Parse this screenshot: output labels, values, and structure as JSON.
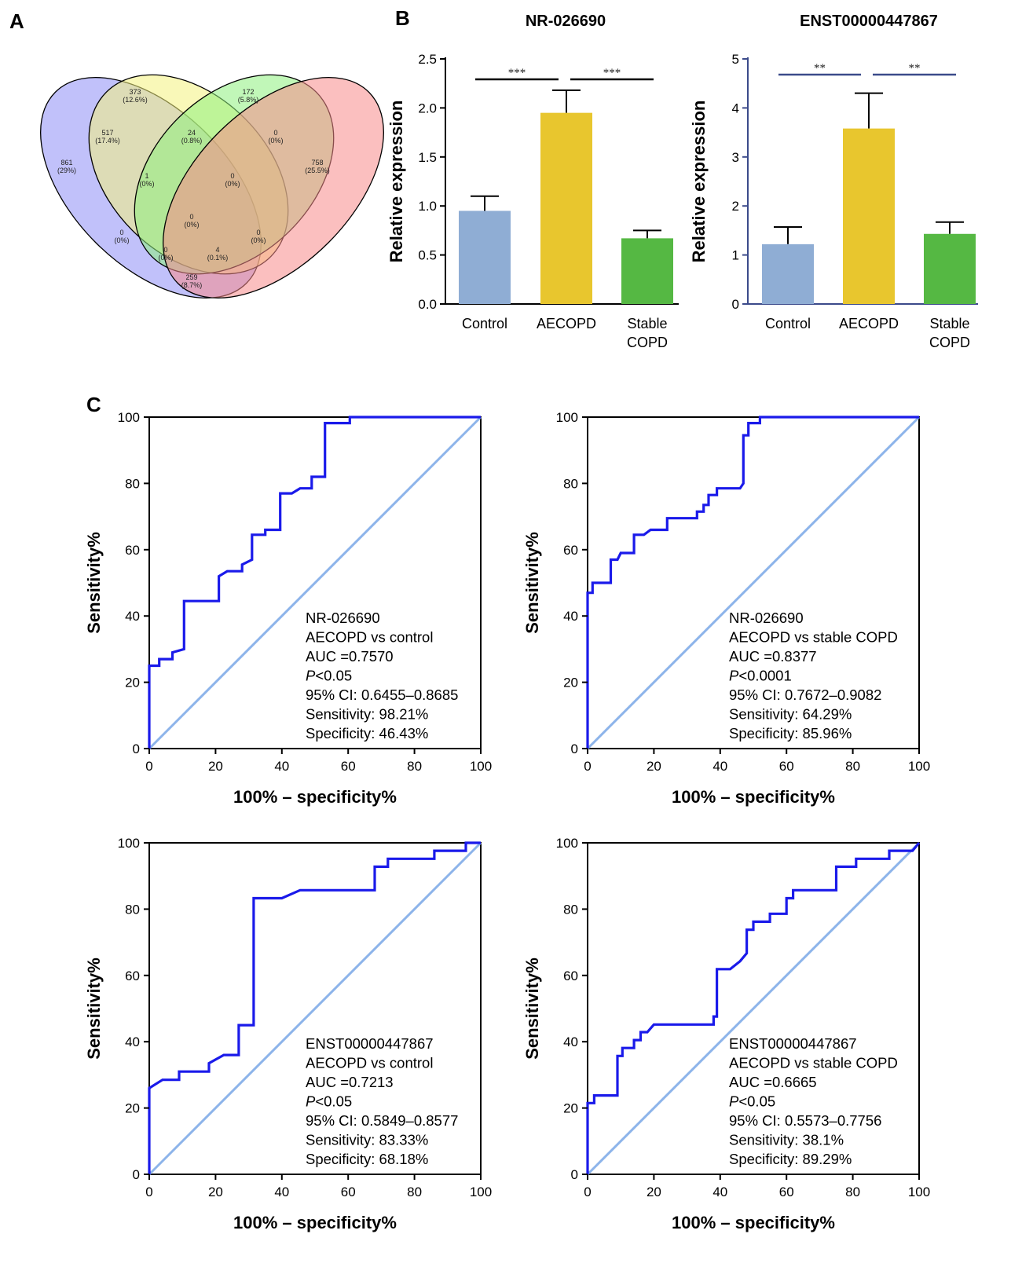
{
  "panel_letters": {
    "a": "A",
    "b": "B",
    "c": "C"
  },
  "venn": {
    "sets": [
      {
        "color": "#8e8ef6"
      },
      {
        "color": "#f4f27e"
      },
      {
        "color": "#8ef07e"
      },
      {
        "color": "#f78a8a"
      }
    ],
    "regions": [
      {
        "count": "373",
        "pct": "(12.6%)"
      },
      {
        "count": "172",
        "pct": "(5.8%)"
      },
      {
        "count": "517",
        "pct": "(17.4%)"
      },
      {
        "count": "24",
        "pct": "(0.8%)"
      },
      {
        "count": "0",
        "pct": "(0%)"
      },
      {
        "count": "861",
        "pct": "(29%)"
      },
      {
        "count": "758",
        "pct": "(25.5%)"
      },
      {
        "count": "1",
        "pct": "(0%)"
      },
      {
        "count": "0",
        "pct": "(0%)"
      },
      {
        "count": "0",
        "pct": "(0%)"
      },
      {
        "count": "0",
        "pct": "(0%)"
      },
      {
        "count": "0",
        "pct": "(0%)"
      },
      {
        "count": "0",
        "pct": "(0%)"
      },
      {
        "count": "4",
        "pct": "(0.1%)"
      },
      {
        "count": "259",
        "pct": "(8.7%)"
      }
    ]
  },
  "chart_data": [
    {
      "type": "bar",
      "title": "NR-026690",
      "ylabel": "Relative expression",
      "categories": [
        "Control",
        "AECOPD",
        "Stable COPD"
      ],
      "values": [
        0.95,
        1.95,
        0.67
      ],
      "error_upper": [
        0.15,
        0.23,
        0.08
      ],
      "colors": [
        "#8fadd4",
        "#e8c62e",
        "#55b843"
      ],
      "ylim": [
        0,
        2.5
      ],
      "yticks": [
        "0.0",
        "0.5",
        "1.0",
        "1.5",
        "2.0",
        "2.5"
      ],
      "significance": [
        {
          "from": 0,
          "to": 1,
          "label": "***"
        },
        {
          "from": 1,
          "to": 2,
          "label": "***"
        }
      ]
    },
    {
      "type": "bar",
      "title": "ENST00000447867",
      "ylabel": "Relative expression",
      "categories": [
        "Control",
        "AECOPD",
        "Stable COPD"
      ],
      "values": [
        1.22,
        3.58,
        1.43
      ],
      "error_upper": [
        0.35,
        0.72,
        0.24
      ],
      "colors": [
        "#8fadd4",
        "#e8c62e",
        "#55b843"
      ],
      "ylim": [
        0,
        5
      ],
      "yticks": [
        "0",
        "1",
        "2",
        "3",
        "4",
        "5"
      ],
      "significance": [
        {
          "from": 0,
          "to": 1,
          "label": "**"
        },
        {
          "from": 1,
          "to": 2,
          "label": "**"
        }
      ]
    },
    {
      "type": "line",
      "xlabel": "100% – specificity%",
      "ylabel": "Sensitivity%",
      "xlim": [
        0,
        100
      ],
      "ylim": [
        0,
        100
      ],
      "xticks": [
        "0",
        "20",
        "40",
        "60",
        "80",
        "100"
      ],
      "yticks": [
        "0",
        "20",
        "40",
        "60",
        "80",
        "100"
      ],
      "annotation": [
        "NR-026690",
        "AECOPD vs control",
        "AUC =0.7570",
        "P<0.05",
        "95% CI: 0.6455–0.8685",
        "Sensitivity: 98.21%",
        "Specificity: 46.43%"
      ],
      "roc": [
        [
          0,
          0
        ],
        [
          0,
          25
        ],
        [
          3,
          25
        ],
        [
          3,
          27
        ],
        [
          7,
          27
        ],
        [
          7,
          29
        ],
        [
          10.5,
          30
        ],
        [
          10.5,
          44.5
        ],
        [
          21,
          44.5
        ],
        [
          21,
          52
        ],
        [
          23.5,
          53.5
        ],
        [
          28,
          53.5
        ],
        [
          28,
          55.5
        ],
        [
          31,
          57
        ],
        [
          31,
          64.5
        ],
        [
          35,
          64.5
        ],
        [
          35,
          66
        ],
        [
          39.5,
          66
        ],
        [
          39.5,
          77
        ],
        [
          43,
          77
        ],
        [
          45.5,
          78.5
        ],
        [
          49,
          78.5
        ],
        [
          49,
          82
        ],
        [
          53,
          82
        ],
        [
          53,
          98.2
        ],
        [
          60.5,
          98.2
        ],
        [
          60.5,
          100
        ],
        [
          100,
          100
        ]
      ]
    },
    {
      "type": "line",
      "xlabel": "100% – specificity%",
      "ylabel": "Sensitivity%",
      "xlim": [
        0,
        100
      ],
      "ylim": [
        0,
        100
      ],
      "xticks": [
        "0",
        "20",
        "40",
        "60",
        "80",
        "100"
      ],
      "yticks": [
        "0",
        "20",
        "40",
        "60",
        "80",
        "100"
      ],
      "annotation": [
        "NR-026690",
        "AECOPD vs stable COPD",
        "AUC =0.8377",
        "P<0.0001",
        "95% CI: 0.7672–0.9082",
        "Sensitivity: 64.29%",
        "Specificity: 85.96%"
      ],
      "roc": [
        [
          0,
          0
        ],
        [
          0,
          47
        ],
        [
          1.5,
          47
        ],
        [
          1.5,
          50
        ],
        [
          7,
          50
        ],
        [
          7,
          57
        ],
        [
          9,
          57
        ],
        [
          10,
          59
        ],
        [
          14,
          59
        ],
        [
          14,
          64.5
        ],
        [
          17,
          64.5
        ],
        [
          19,
          66
        ],
        [
          24,
          66
        ],
        [
          24,
          69.5
        ],
        [
          33,
          69.5
        ],
        [
          33,
          71.5
        ],
        [
          35,
          71.5
        ],
        [
          35,
          73.5
        ],
        [
          36.5,
          73.5
        ],
        [
          36.5,
          76.5
        ],
        [
          39,
          76.5
        ],
        [
          39,
          78.5
        ],
        [
          46,
          78.5
        ],
        [
          47,
          80
        ],
        [
          47,
          94.5
        ],
        [
          48.5,
          94.5
        ],
        [
          48.5,
          98.2
        ],
        [
          52,
          98.2
        ],
        [
          52,
          100
        ],
        [
          100,
          100
        ]
      ]
    },
    {
      "type": "line",
      "xlabel": "100% – specificity%",
      "ylabel": "Sensitivity%",
      "xlim": [
        0,
        100
      ],
      "ylim": [
        0,
        100
      ],
      "xticks": [
        "0",
        "20",
        "40",
        "60",
        "80",
        "100"
      ],
      "yticks": [
        "0",
        "20",
        "40",
        "60",
        "80",
        "100"
      ],
      "annotation": [
        "ENST00000447867",
        "AECOPD vs control",
        "AUC =0.7213",
        "P<0.05",
        "95% CI: 0.5849–0.8577",
        "Sensitivity: 83.33%",
        "Specificity: 68.18%"
      ],
      "roc": [
        [
          0,
          0
        ],
        [
          0,
          26
        ],
        [
          4,
          28.5
        ],
        [
          9,
          28.5
        ],
        [
          9,
          31
        ],
        [
          18,
          31
        ],
        [
          18,
          33.5
        ],
        [
          22.5,
          36
        ],
        [
          27,
          36
        ],
        [
          27,
          45
        ],
        [
          31.5,
          45
        ],
        [
          31.5,
          83.3
        ],
        [
          40,
          83.3
        ],
        [
          45.5,
          85.7
        ],
        [
          68,
          85.7
        ],
        [
          68,
          92.8
        ],
        [
          72,
          92.8
        ],
        [
          72,
          95.2
        ],
        [
          86,
          95.2
        ],
        [
          86,
          97.6
        ],
        [
          95.5,
          97.6
        ],
        [
          95.5,
          100
        ],
        [
          100,
          100
        ]
      ]
    },
    {
      "type": "line",
      "xlabel": "100% – specificity%",
      "ylabel": "Sensitivity%",
      "xlim": [
        0,
        100
      ],
      "ylim": [
        0,
        100
      ],
      "xticks": [
        "0",
        "20",
        "40",
        "60",
        "80",
        "100"
      ],
      "yticks": [
        "0",
        "20",
        "40",
        "60",
        "80",
        "100"
      ],
      "annotation": [
        "ENST00000447867",
        "AECOPD vs stable COPD",
        "AUC =0.6665",
        "P<0.05",
        "95% CI: 0.5573–0.7756",
        "Sensitivity: 38.1%",
        "Specificity: 89.29%"
      ],
      "roc": [
        [
          0,
          0
        ],
        [
          0,
          21.5
        ],
        [
          2,
          21.5
        ],
        [
          2,
          23.8
        ],
        [
          9,
          23.8
        ],
        [
          9,
          35.7
        ],
        [
          10.5,
          35.7
        ],
        [
          10.5,
          38.1
        ],
        [
          14,
          38.1
        ],
        [
          14,
          40.5
        ],
        [
          16,
          40.5
        ],
        [
          16,
          42.9
        ],
        [
          18,
          42.9
        ],
        [
          20,
          45.2
        ],
        [
          38,
          45.2
        ],
        [
          38,
          47.6
        ],
        [
          39,
          47.6
        ],
        [
          39,
          61.9
        ],
        [
          43,
          61.9
        ],
        [
          46,
          64.3
        ],
        [
          48,
          66.7
        ],
        [
          48,
          73.8
        ],
        [
          50,
          73.8
        ],
        [
          50,
          76.2
        ],
        [
          55,
          76.2
        ],
        [
          55,
          78.6
        ],
        [
          60,
          78.6
        ],
        [
          60,
          83.3
        ],
        [
          62,
          83.3
        ],
        [
          62,
          85.7
        ],
        [
          75,
          85.7
        ],
        [
          75,
          92.8
        ],
        [
          81,
          92.8
        ],
        [
          81,
          95.2
        ],
        [
          91,
          95.2
        ],
        [
          91,
          97.6
        ],
        [
          98,
          97.6
        ],
        [
          100,
          100
        ]
      ]
    }
  ],
  "colors": {
    "roc_curve": "#1a1aea",
    "reference_line": "#8db4ea",
    "axis": "#000000",
    "b2_axis": "#3b4a8a"
  }
}
